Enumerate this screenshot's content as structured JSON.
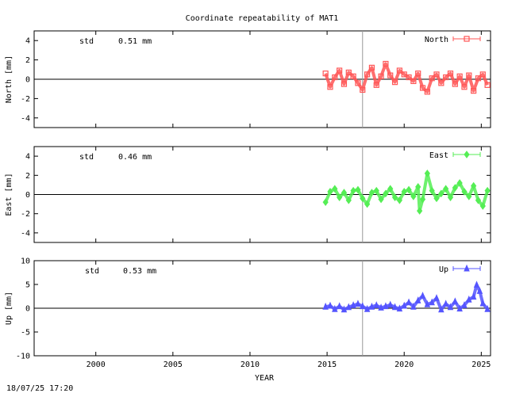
{
  "title": "Coordinate repeatability of MAT1",
  "timestamp": "18/07/25 17:20",
  "colors": {
    "north": "#ff5555",
    "east": "#55ee55",
    "up": "#5555ff",
    "axis": "#000000",
    "vline": "#999999"
  },
  "chart_data": [
    {
      "type": "scatter",
      "xlabel": "YEAR",
      "ylabel": "North [mm]",
      "ylim": [
        -5,
        5
      ],
      "yticks": [
        4,
        2,
        0,
        -2,
        -4
      ],
      "xlim": [
        1996,
        2025.6
      ],
      "xticks": [
        2000,
        2005,
        2010,
        2015,
        2020,
        2025
      ],
      "reference_line_x": 2017.3,
      "std_label": "std",
      "std_value": "0.51 mm",
      "legend": "North",
      "legend_position": "top-right",
      "marker": "square",
      "series": [
        {
          "name": "North",
          "x": [
            2014.9,
            2015.2,
            2015.5,
            2015.8,
            2016.1,
            2016.4,
            2016.7,
            2017.0,
            2017.3,
            2017.6,
            2017.9,
            2018.2,
            2018.5,
            2018.8,
            2019.1,
            2019.4,
            2019.7,
            2020.0,
            2020.3,
            2020.6,
            2020.9,
            2021.2,
            2021.5,
            2021.8,
            2022.1,
            2022.4,
            2022.7,
            2023.0,
            2023.3,
            2023.6,
            2023.9,
            2024.2,
            2024.5,
            2024.8,
            2025.1,
            2025.4
          ],
          "y": [
            0.6,
            -0.8,
            0.2,
            0.9,
            -0.5,
            0.7,
            0.3,
            -0.4,
            -1.1,
            0.5,
            1.2,
            -0.6,
            0.3,
            1.6,
            0.4,
            -0.3,
            0.9,
            0.5,
            0.2,
            -0.2,
            0.6,
            -0.9,
            -1.3,
            0.1,
            0.5,
            -0.4,
            0.2,
            0.6,
            -0.5,
            0.3,
            -0.8,
            0.4,
            -1.2,
            0.1,
            0.5,
            -0.6
          ]
        }
      ]
    },
    {
      "type": "scatter",
      "xlabel": "YEAR",
      "ylabel": "East [mm]",
      "ylim": [
        -5,
        5
      ],
      "yticks": [
        4,
        2,
        0,
        -2,
        -4
      ],
      "xlim": [
        1996,
        2025.6
      ],
      "xticks": [
        2000,
        2005,
        2010,
        2015,
        2020,
        2025
      ],
      "reference_line_x": 2017.3,
      "std_label": "std",
      "std_value": "0.46 mm",
      "legend": "East",
      "legend_position": "top-right",
      "marker": "diamond",
      "series": [
        {
          "name": "East",
          "x": [
            2014.9,
            2015.2,
            2015.5,
            2015.8,
            2016.1,
            2016.4,
            2016.7,
            2017.0,
            2017.3,
            2017.6,
            2017.9,
            2018.2,
            2018.5,
            2018.8,
            2019.1,
            2019.4,
            2019.7,
            2020.0,
            2020.3,
            2020.6,
            2020.9,
            2021.0,
            2021.2,
            2021.5,
            2021.8,
            2022.1,
            2022.4,
            2022.7,
            2023.0,
            2023.3,
            2023.6,
            2023.9,
            2024.2,
            2024.5,
            2024.8,
            2025.1,
            2025.4
          ],
          "y": [
            -0.8,
            0.3,
            0.6,
            -0.3,
            0.2,
            -0.6,
            0.4,
            0.5,
            -0.4,
            -1.0,
            0.2,
            0.4,
            -0.5,
            0.1,
            0.6,
            -0.3,
            -0.6,
            0.3,
            0.5,
            -0.2,
            0.8,
            -1.7,
            -0.5,
            2.2,
            0.4,
            -0.4,
            0.1,
            0.6,
            -0.3,
            0.7,
            1.2,
            0.3,
            -0.2,
            0.9,
            -0.6,
            -1.2,
            0.4
          ]
        }
      ]
    },
    {
      "type": "scatter",
      "xlabel": "YEAR",
      "ylabel": "Up [mm]",
      "ylim": [
        -10,
        10
      ],
      "yticks": [
        10,
        5,
        0,
        -5,
        -10
      ],
      "xlim": [
        1996,
        2025.6
      ],
      "xticks": [
        2000,
        2005,
        2010,
        2015,
        2020,
        2025
      ],
      "reference_line_x": 2017.3,
      "std_label": "std",
      "std_value": "0.53 mm",
      "legend": "Up",
      "legend_position": "top-right",
      "marker": "triangle",
      "series": [
        {
          "name": "Up",
          "x": [
            2014.9,
            2015.2,
            2015.5,
            2015.8,
            2016.1,
            2016.4,
            2016.7,
            2017.0,
            2017.3,
            2017.6,
            2017.9,
            2018.2,
            2018.5,
            2018.8,
            2019.1,
            2019.4,
            2019.7,
            2020.0,
            2020.3,
            2020.6,
            2020.9,
            2021.2,
            2021.5,
            2021.8,
            2022.1,
            2022.4,
            2022.7,
            2023.0,
            2023.3,
            2023.6,
            2023.9,
            2024.2,
            2024.5,
            2024.7,
            2024.9,
            2025.1,
            2025.4
          ],
          "y": [
            0.3,
            0.5,
            -0.2,
            0.4,
            -0.3,
            0.2,
            0.6,
            0.9,
            0.4,
            -0.2,
            0.3,
            0.6,
            0.1,
            0.4,
            0.7,
            0.2,
            -0.1,
            0.5,
            1.2,
            0.3,
            1.6,
            2.6,
            0.8,
            1.2,
            2.1,
            -0.3,
            0.9,
            0.2,
            1.4,
            -0.1,
            0.6,
            1.8,
            2.4,
            4.9,
            3.6,
            1.0,
            -0.2
          ]
        }
      ]
    }
  ]
}
